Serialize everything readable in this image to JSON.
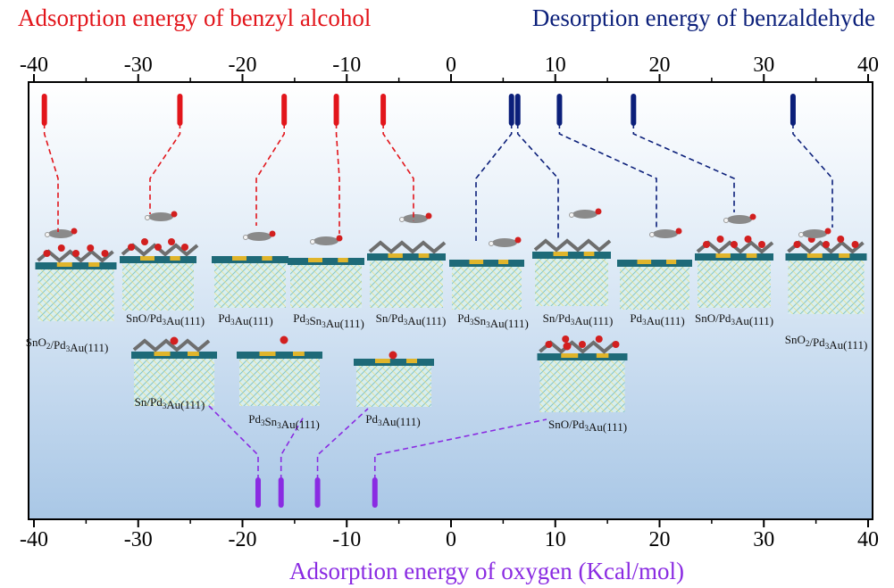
{
  "chart_data": {
    "type": "scatter",
    "title_top_left": "Adsorption energy of benzyl alcohol",
    "title_top_right": "Desorption energy of benzaldehyde",
    "xlabel_bottom": "Adsorption energy of oxygen (Kcal/mol)",
    "xlim": [
      -40,
      40
    ],
    "ticks": [
      -40,
      -30,
      -20,
      -10,
      0,
      10,
      20,
      30,
      40
    ],
    "grid": false,
    "series": [
      {
        "key": "benzyl_alcohol_adsorption",
        "color": "#e2151b",
        "row": "top",
        "points": [
          {
            "x": -39.0,
            "label": "SnO2/Pd3Au(111)"
          },
          {
            "x": -26.0,
            "label": "SnO/Pd3Au(111)"
          },
          {
            "x": -16.0,
            "label": "Pd3Au(111)"
          },
          {
            "x": -11.0,
            "label": "Pd3Sn3Au(111)"
          },
          {
            "x": -6.5,
            "label": "Sn/Pd3Au(111)"
          }
        ]
      },
      {
        "key": "benzaldehyde_desorption",
        "color": "#0b1f7a",
        "row": "top",
        "points": [
          {
            "x": 5.8,
            "label": "Pd3Sn3Au(111)"
          },
          {
            "x": 6.4,
            "label": "Sn/Pd3Au(111)"
          },
          {
            "x": 10.4,
            "label": "Pd3Au(111)"
          },
          {
            "x": 17.5,
            "label": "SnO/Pd3Au(111)"
          },
          {
            "x": 32.8,
            "label": "SnO2/Pd3Au(111)"
          }
        ]
      },
      {
        "key": "oxygen_adsorption",
        "color": "#8a2be2",
        "row": "bottom",
        "points": [
          {
            "x": -18.5,
            "label": "Sn/Pd3Au(111)"
          },
          {
            "x": -16.3,
            "label": "Pd3Sn3Au(111)"
          },
          {
            "x": -12.8,
            "label": "Pd3Au(111)"
          },
          {
            "x": -7.3,
            "label": "SnO/Pd3Au(111)"
          }
        ]
      }
    ]
  },
  "structure_labels": {
    "top": [
      "SnO2/Pd3Au(111)",
      "SnO/Pd3Au(111)",
      "Pd3Au(111)",
      "Pd3Sn3Au(111)",
      "Sn/Pd3Au(111)",
      "Pd3Sn3Au(111)",
      "Sn/Pd3Au(111)",
      "Pd3Au(111)",
      "SnO/Pd3Au(111)",
      "SnO2/Pd3Au(111)"
    ],
    "bottom": [
      "Sn/Pd3Au(111)",
      "Pd3Sn3Au(111)",
      "Pd3Au(111)",
      "SnO/Pd3Au(111)"
    ]
  },
  "colors": {
    "red": "#e2151b",
    "navy": "#0b1f7a",
    "purple": "#8a2be2",
    "panel_top": "#ffffff",
    "panel_bottom": "#a9c7e6"
  }
}
